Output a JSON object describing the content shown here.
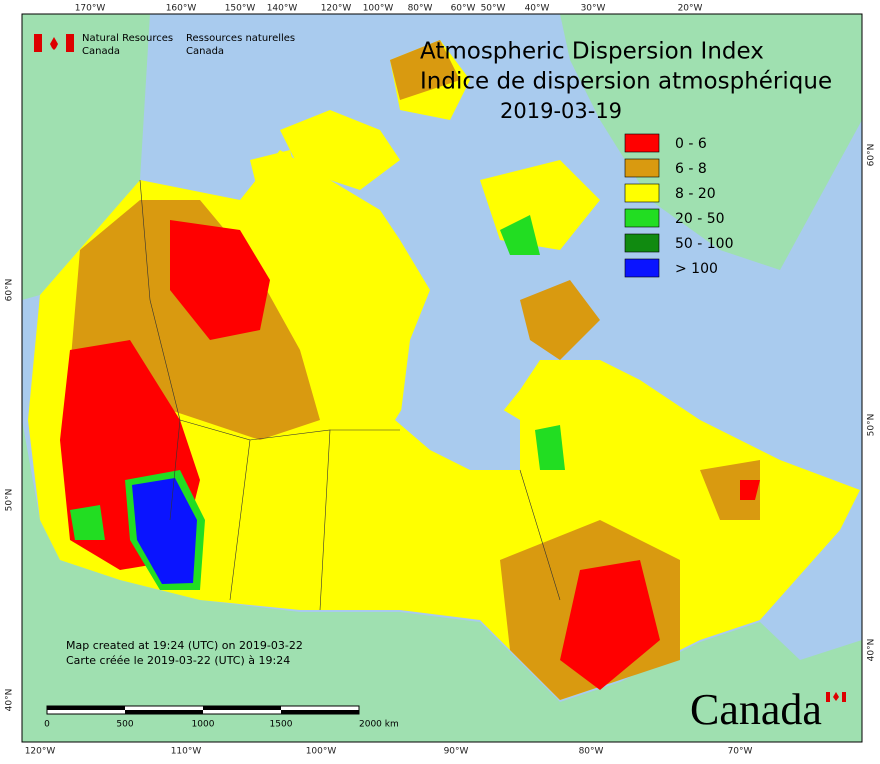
{
  "header": {
    "agency_en": [
      "Natural Resources",
      "Canada"
    ],
    "agency_fr": [
      "Ressources naturelles",
      "Canada"
    ]
  },
  "title": [
    "Atmospheric Dispersion Index",
    "Indice de dispersion atmosphérique",
    "2019-03-19"
  ],
  "legend": [
    {
      "label": "0 - 6",
      "color": "#ff0000"
    },
    {
      "label": "6 - 8",
      "color": "#d99a10"
    },
    {
      "label": "8 - 20",
      "color": "#ffff00"
    },
    {
      "label": "20 - 50",
      "color": "#22dd22"
    },
    {
      "label": "50 - 100",
      "color": "#108a10"
    },
    {
      "label": "> 100",
      "color": "#0a14ff"
    }
  ],
  "graticule": {
    "top": [
      "170°W",
      "160°W",
      "150°W",
      "140°W",
      "120°W",
      "100°W",
      "80°W",
      "60°W",
      "50°W",
      "40°W",
      "30°W",
      "20°W"
    ],
    "bottom": [
      "120°W",
      "110°W",
      "100°W",
      "90°W",
      "80°W",
      "70°W"
    ],
    "left": [
      "60°N",
      "50°N",
      "40°N"
    ],
    "right": [
      "60°N",
      "50°N",
      "40°N"
    ]
  },
  "notes": [
    "Map created at 19:24 (UTC) on 2019-03-22",
    "Carte créée le 2019-03-22 (UTC) à 19:24"
  ],
  "scale_bar": {
    "labels": [
      "0",
      "500",
      "1000",
      "1500",
      "2000 km"
    ]
  },
  "wordmark": "Canada"
}
